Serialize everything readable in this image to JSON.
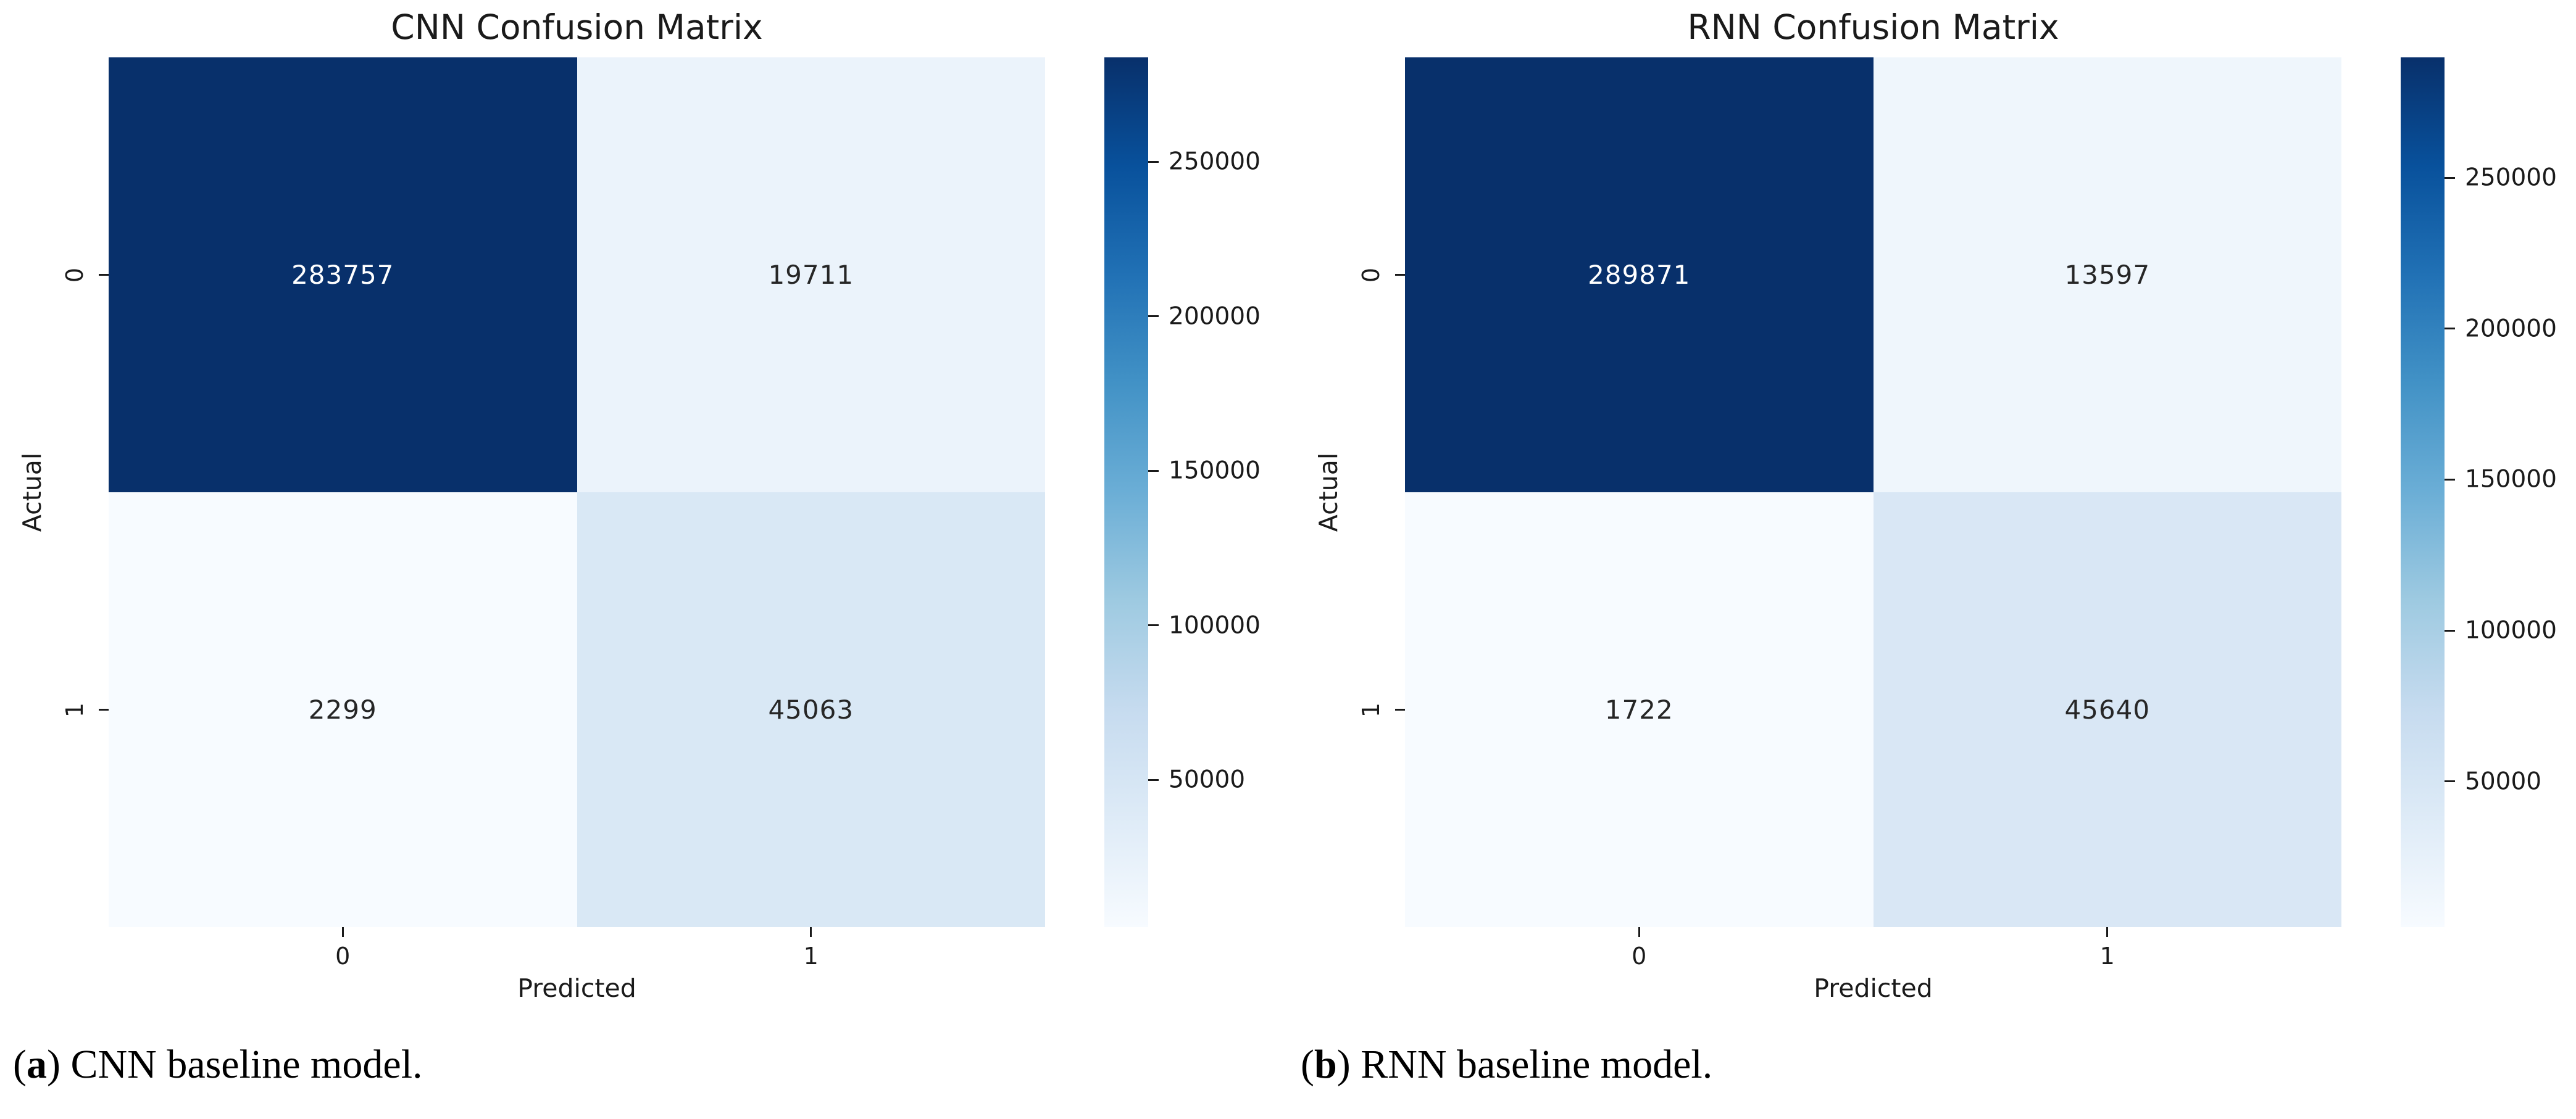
{
  "figure": {
    "background": "#ffffff",
    "text_color": "#1a1a1a",
    "annotation_dark_text": "#262626",
    "annotation_light_text": "#ffffff",
    "colormap_name": "Blues",
    "colormap": [
      "#f7fbff",
      "#deebf7",
      "#c6dbef",
      "#9ecae1",
      "#6baed6",
      "#4292c6",
      "#2171b5",
      "#08519c",
      "#08306b"
    ],
    "colorbar_ticks": [
      {
        "value": 50000,
        "label": "50000"
      },
      {
        "value": 100000,
        "label": "100000"
      },
      {
        "value": 150000,
        "label": "150000"
      },
      {
        "value": 200000,
        "label": "200000"
      },
      {
        "value": 250000,
        "label": "250000"
      }
    ]
  },
  "chart_data": [
    {
      "type": "heatmap",
      "title": "CNN Confusion Matrix",
      "xlabel": "Predicted",
      "ylabel": "Actual",
      "x_categories": [
        "0",
        "1"
      ],
      "y_categories": [
        "0",
        "1"
      ],
      "values": [
        [
          283757,
          19711
        ],
        [
          2299,
          45063
        ]
      ],
      "legend_position": "right-colorbar",
      "caption": {
        "marker_open": "(",
        "marker_letter": "a",
        "marker_close": ")",
        "text": "CNN baseline model."
      }
    },
    {
      "type": "heatmap",
      "title": "RNN Confusion Matrix",
      "xlabel": "Predicted",
      "ylabel": "Actual",
      "x_categories": [
        "0",
        "1"
      ],
      "y_categories": [
        "0",
        "1"
      ],
      "values": [
        [
          289871,
          13597
        ],
        [
          1722,
          45640
        ]
      ],
      "legend_position": "right-colorbar",
      "caption": {
        "marker_open": "(",
        "marker_letter": "b",
        "marker_close": ")",
        "text": "RNN baseline model."
      }
    }
  ]
}
